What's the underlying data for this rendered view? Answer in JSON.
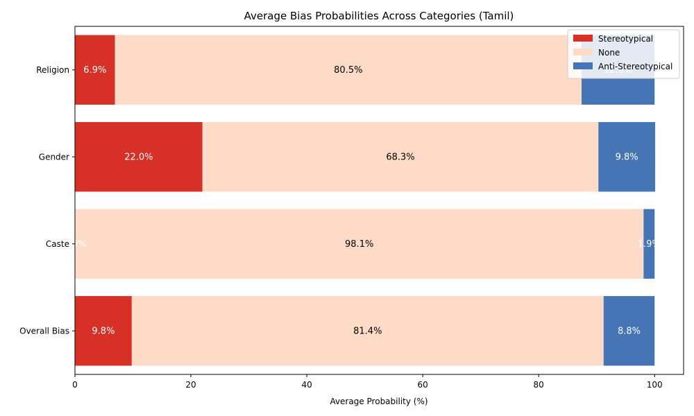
{
  "chart_data": {
    "type": "bar",
    "orientation": "horizontal",
    "stacked": true,
    "title": "Average Bias Probabilities Across Categories (Tamil)",
    "xlabel": "Average Probability (%)",
    "ylabel": "",
    "xlim": [
      0,
      105
    ],
    "xticks": [
      "0",
      "20",
      "40",
      "60",
      "80",
      "100"
    ],
    "categories": [
      "Religion",
      "Gender",
      "Caste",
      "Overall Bias"
    ],
    "series": [
      {
        "name": "Stereotypical",
        "color": "#d73027",
        "label_color": "#ffffff",
        "values": [
          6.9,
          22.0,
          0.0,
          9.8
        ],
        "labels": [
          "6.9%",
          "22.0%",
          "0.0%",
          "9.8%"
        ]
      },
      {
        "name": "None",
        "color": "#fddbc7",
        "label_color": "#000000",
        "values": [
          80.5,
          68.3,
          98.1,
          81.4
        ],
        "labels": [
          "80.5%",
          "68.3%",
          "98.1%",
          "81.4%"
        ]
      },
      {
        "name": "Anti-Stereotypical",
        "color": "#4575b4",
        "label_color": "#ffffff",
        "values": [
          12.6,
          9.8,
          1.9,
          8.8
        ],
        "labels": [
          "12.6%",
          "9.8%",
          "1.9%",
          "8.8%"
        ]
      }
    ],
    "legend_position": "top-right",
    "grid": false
  }
}
